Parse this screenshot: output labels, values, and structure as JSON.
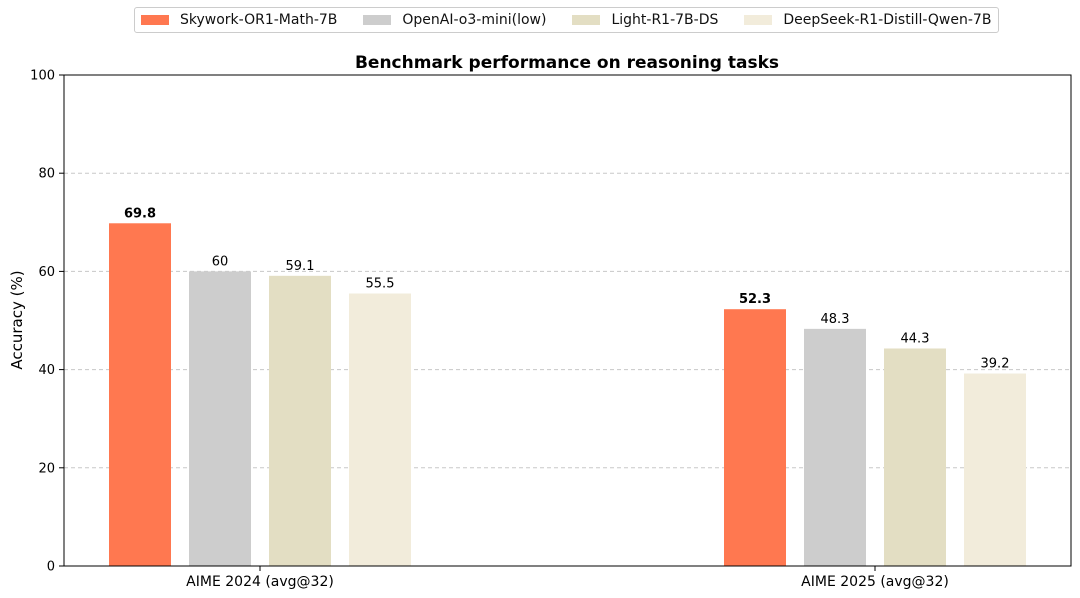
{
  "chart_data": {
    "type": "bar",
    "title": "Benchmark performance on reasoning tasks",
    "xlabel": "",
    "ylabel": "Accuracy (%)",
    "ylim": [
      0,
      100
    ],
    "yticks": [
      0,
      20,
      40,
      60,
      80,
      100
    ],
    "grid": "horizontal dashed",
    "legend_position": "top-center",
    "categories": [
      "AIME 2024 (avg@32)",
      "AIME 2025 (avg@32)"
    ],
    "series": [
      {
        "name": "Skywork-OR1-Math-7B",
        "values": [
          69.8,
          52.3
        ],
        "color": "#ff7850",
        "labels": [
          "69.8",
          "52.3"
        ],
        "label_bold": true
      },
      {
        "name": "OpenAI-o3-mini(low)",
        "values": [
          60,
          48.3
        ],
        "color": "#cdcdcd",
        "labels": [
          "60",
          "48.3"
        ],
        "label_bold": false
      },
      {
        "name": "Light-R1-7B-DS",
        "values": [
          59.1,
          44.3
        ],
        "color": "#e3dec3",
        "labels": [
          "59.1",
          "44.3"
        ],
        "label_bold": false
      },
      {
        "name": "DeepSeek-R1-Distill-Qwen-7B",
        "values": [
          55.5,
          39.2
        ],
        "color": "#f2ecdb",
        "labels": [
          "55.5",
          "39.2"
        ],
        "label_bold": false
      }
    ]
  }
}
